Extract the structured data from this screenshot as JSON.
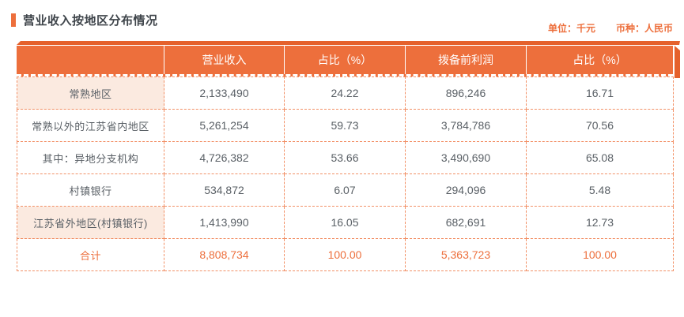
{
  "page": {
    "title": "营业收入按地区分布情况",
    "unit_label": "单位：千元",
    "currency_label": "币种：人民币"
  },
  "colors": {
    "accent": "#ED6F3C",
    "accent_dark": "#E5612C",
    "dashed_border": "#F29066",
    "highlight_bg": "#FBEAE0",
    "body_text": "#5A6066",
    "title_text": "#3F454B",
    "header_text": "#FFFFFF"
  },
  "table": {
    "columns": [
      "",
      "营业收入",
      "占比（%）",
      "拨备前利润",
      "占比（%）"
    ],
    "rows": [
      {
        "region": "常熟地区",
        "values": [
          "2,133,490",
          "24.22",
          "896,246",
          "16.71"
        ],
        "highlight": true,
        "total": false
      },
      {
        "region": "常熟以外的江苏省内地区",
        "values": [
          "5,261,254",
          "59.73",
          "3,784,786",
          "70.56"
        ],
        "highlight": false,
        "total": false
      },
      {
        "region": "其中：异地分支机构",
        "values": [
          "4,726,382",
          "53.66",
          "3,490,690",
          "65.08"
        ],
        "highlight": false,
        "total": false
      },
      {
        "region": "村镇银行",
        "values": [
          "534,872",
          "6.07",
          "294,096",
          "5.48"
        ],
        "highlight": false,
        "total": false
      },
      {
        "region": "江苏省外地区(村镇银行)",
        "values": [
          "1,413,990",
          "16.05",
          "682,691",
          "12.73"
        ],
        "highlight": true,
        "total": false
      },
      {
        "region": "合计",
        "values": [
          "8,808,734",
          "100.00",
          "5,363,723",
          "100.00"
        ],
        "highlight": false,
        "total": true
      }
    ]
  }
}
